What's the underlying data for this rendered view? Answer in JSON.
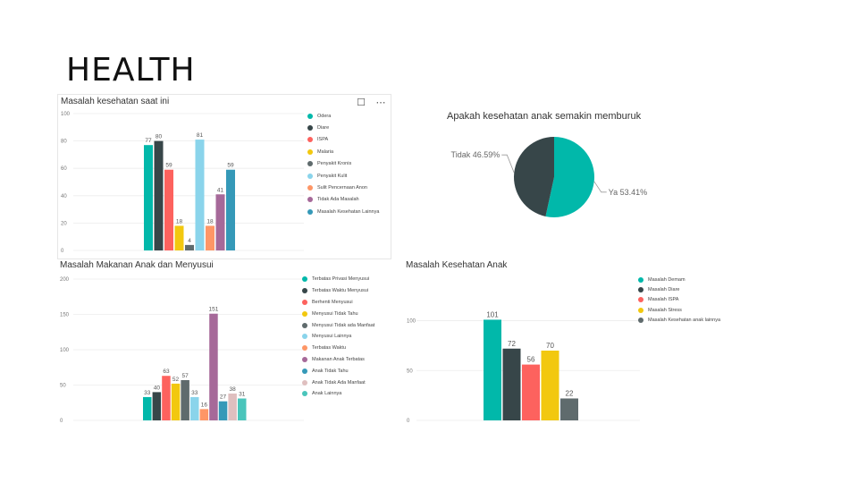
{
  "slide_title": "HEALTH",
  "toolbar": {
    "focus_icon": "focus-mode-icon",
    "more_icon": "more-options-icon"
  },
  "chart_data": [
    {
      "type": "bar",
      "title": "Masalah kesehatan saat ini",
      "ylim": [
        0,
        100
      ],
      "yticks": [
        "100",
        "80",
        "60",
        "40",
        "20",
        "0"
      ],
      "series": [
        {
          "name": "Odera",
          "value": 77,
          "color": "#01B8AA"
        },
        {
          "name": "Diare",
          "value": 80,
          "color": "#374649"
        },
        {
          "name": "ISPA",
          "value": 59,
          "color": "#FD625E"
        },
        {
          "name": "Malaria",
          "value": 18,
          "color": "#F2C80F"
        },
        {
          "name": "Penyakit Kronis",
          "value": 4,
          "color": "#5F6B6D"
        },
        {
          "name": "Penyakit Kulit",
          "value": 81,
          "color": "#8AD4EB"
        },
        {
          "name": "Sulit Pencernaan Anon",
          "value": 18,
          "color": "#FE9666"
        },
        {
          "name": "Tidak Ada Masalah",
          "value": 41,
          "color": "#A66999"
        },
        {
          "name": "Masalah Kesehatan Lainnya",
          "value": 59,
          "color": "#3599B8"
        }
      ]
    },
    {
      "type": "pie",
      "title": "Apakah kesehatan anak semakin memburuk",
      "slices": [
        {
          "name": "Ya",
          "value": 53.41,
          "label": "Ya 53.41%",
          "color": "#01B8AA"
        },
        {
          "name": "Tidak",
          "value": 46.59,
          "label": "Tidak 46.59%",
          "color": "#374649"
        }
      ]
    },
    {
      "type": "bar",
      "title": "Masalah Makanan Anak dan Menyusui",
      "ylim": [
        0,
        200
      ],
      "yticks": [
        "200",
        "150",
        "100",
        "50",
        "0"
      ],
      "series": [
        {
          "name": "Terbatas Privasi Menyusui",
          "value": 33,
          "color": "#01B8AA"
        },
        {
          "name": "Terbatas Waktu Menyusui",
          "value": 40,
          "color": "#374649"
        },
        {
          "name": "Berhenti Menyusui",
          "value": 63,
          "color": "#FD625E"
        },
        {
          "name": "Menyusui Tidak Tahu",
          "value": 52,
          "color": "#F2C80F"
        },
        {
          "name": "Menyusui Tidak ada Manfaat",
          "value": 57,
          "color": "#5F6B6D"
        },
        {
          "name": "Menyusui Lainnya",
          "value": 33,
          "color": "#8AD4EB"
        },
        {
          "name": "Terbatas Waktu",
          "value": 16,
          "color": "#FE9666"
        },
        {
          "name": "Makanan Anak Terbatas",
          "value": 151,
          "color": "#A66999"
        },
        {
          "name": "Anak Tidak Tahu",
          "value": 27,
          "color": "#3599B8"
        },
        {
          "name": "Anak Tidak Ada Manfaat",
          "value": 38,
          "color": "#DFBFBF"
        },
        {
          "name": "Anak Lainnya",
          "value": 31,
          "color": "#4AC5BB"
        }
      ]
    },
    {
      "type": "bar",
      "title": "Masalah Kesehatan Anak",
      "ylim": [
        0,
        131
      ],
      "yticks": [
        "100",
        "50",
        "0"
      ],
      "series": [
        {
          "name": "Masalah Demam",
          "value": 101,
          "color": "#01B8AA"
        },
        {
          "name": "Masalah Diare",
          "value": 72,
          "color": "#374649"
        },
        {
          "name": "Masalah ISPA",
          "value": 56,
          "color": "#FD625E"
        },
        {
          "name": "Masalah Stress",
          "value": 70,
          "color": "#F2C80F"
        },
        {
          "name": "Masalah Kesehatan anak lainnya",
          "value": 22,
          "color": "#5F6B6D"
        }
      ]
    }
  ]
}
